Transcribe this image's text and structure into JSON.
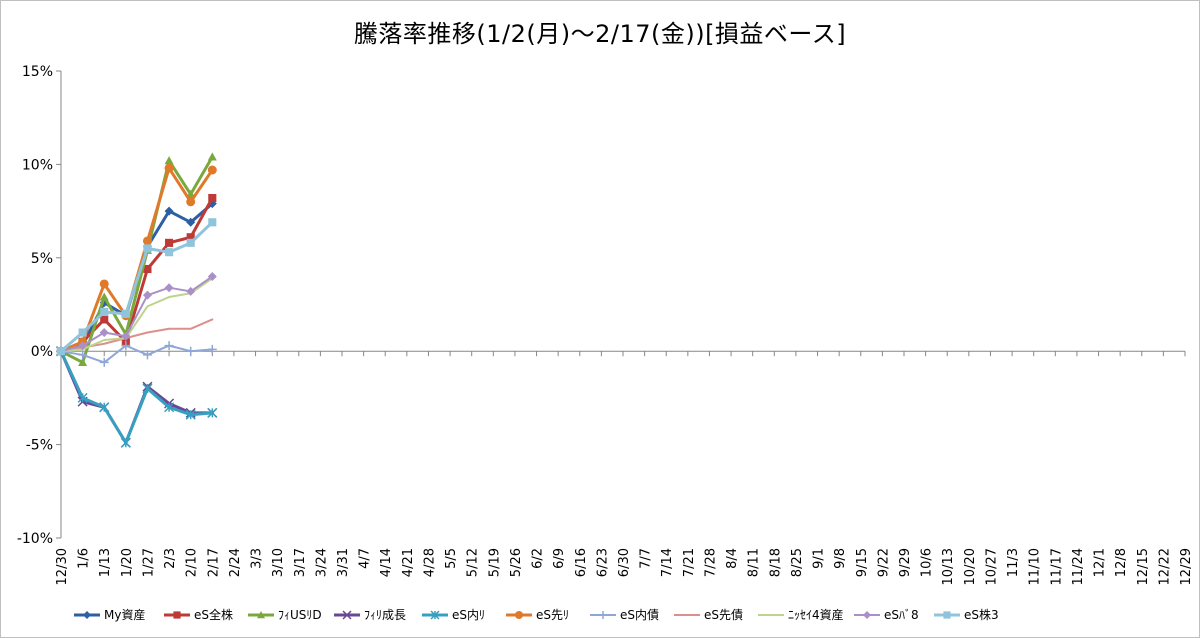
{
  "chart_data": {
    "type": "line",
    "title": "騰落率推移(1/2(月)～2/17(金))[損益ベース]",
    "xlabel": "",
    "ylabel": "",
    "ylim": [
      -10,
      15
    ],
    "yticks": [
      "15%",
      "10%",
      "5%",
      "0%",
      "-5%",
      "-10%"
    ],
    "ytick_values": [
      15,
      10,
      5,
      0,
      -5,
      -10
    ],
    "categories": [
      "12/30",
      "1/6",
      "1/13",
      "1/20",
      "1/27",
      "2/3",
      "2/10",
      "2/17",
      "2/24",
      "3/3",
      "3/10",
      "3/17",
      "3/24",
      "3/31",
      "4/7",
      "4/14",
      "4/21",
      "4/28",
      "5/5",
      "5/12",
      "5/19",
      "5/26",
      "6/2",
      "6/9",
      "6/16",
      "6/23",
      "6/30",
      "7/7",
      "7/14",
      "7/21",
      "7/28",
      "8/4",
      "8/11",
      "8/18",
      "8/25",
      "9/1",
      "9/8",
      "9/15",
      "9/22",
      "9/29",
      "10/6",
      "10/13",
      "10/20",
      "10/27",
      "11/3",
      "11/10",
      "11/17",
      "11/24",
      "12/1",
      "12/8",
      "12/15",
      "12/22",
      "12/29"
    ],
    "x": [
      0,
      1,
      2,
      3,
      4,
      5,
      6,
      7
    ],
    "grid": false,
    "legend": "bottom",
    "series": [
      {
        "name": "My資産",
        "color": "#2e5fa3",
        "marker": "diamond",
        "width": 3,
        "values": [
          0,
          0.3,
          2.6,
          1.9,
          5.6,
          7.5,
          6.9,
          7.9
        ]
      },
      {
        "name": "eS全株",
        "color": "#be3a36",
        "marker": "square",
        "width": 3,
        "values": [
          0,
          0.5,
          1.7,
          0.5,
          4.4,
          5.8,
          6.1,
          8.2
        ]
      },
      {
        "name": "ﾌｨUSﾘD",
        "color": "#7ba83c",
        "marker": "triangle",
        "width": 3,
        "values": [
          0,
          -0.6,
          2.9,
          0.9,
          5.4,
          10.2,
          8.4,
          10.4
        ]
      },
      {
        "name": "ﾌｨﾘ成長",
        "color": "#6a4794",
        "marker": "x",
        "width": 3,
        "values": [
          0,
          -2.7,
          -3.0,
          -4.9,
          -1.9,
          -2.8,
          -3.3,
          -3.3
        ]
      },
      {
        "name": "eS内ﾘ",
        "color": "#37a0c0",
        "marker": "star",
        "width": 3,
        "values": [
          0,
          -2.5,
          -3.0,
          -4.9,
          -2.0,
          -3.0,
          -3.4,
          -3.3
        ]
      },
      {
        "name": "eS先ﾘ",
        "color": "#e07a2b",
        "marker": "circle",
        "width": 3,
        "values": [
          0,
          0.5,
          3.6,
          1.9,
          5.9,
          9.8,
          8.0,
          9.7
        ]
      },
      {
        "name": "eS内債",
        "color": "#8ea7d7",
        "marker": "plus",
        "width": 2,
        "values": [
          0,
          -0.2,
          -0.6,
          0.3,
          -0.2,
          0.3,
          0.0,
          0.1
        ]
      },
      {
        "name": "eS先債",
        "color": "#dc8f8d",
        "marker": "none",
        "width": 2,
        "values": [
          0,
          0.2,
          0.4,
          0.7,
          1.0,
          1.2,
          1.2,
          1.7
        ]
      },
      {
        "name": "ﾆｯｾｲ4資産",
        "color": "#bdd48c",
        "marker": "none",
        "width": 2,
        "values": [
          0,
          0.1,
          0.6,
          0.7,
          2.4,
          2.9,
          3.1,
          3.9
        ]
      },
      {
        "name": "eSﾊﾞ8",
        "color": "#a990c9",
        "marker": "diamond",
        "width": 2,
        "values": [
          0,
          0.3,
          1.0,
          0.8,
          3.0,
          3.4,
          3.2,
          4.0
        ]
      },
      {
        "name": "eS株3",
        "color": "#8fc4dc",
        "marker": "square",
        "width": 3,
        "values": [
          0,
          1.0,
          2.1,
          2.0,
          5.5,
          5.3,
          5.8,
          6.9
        ]
      }
    ]
  }
}
